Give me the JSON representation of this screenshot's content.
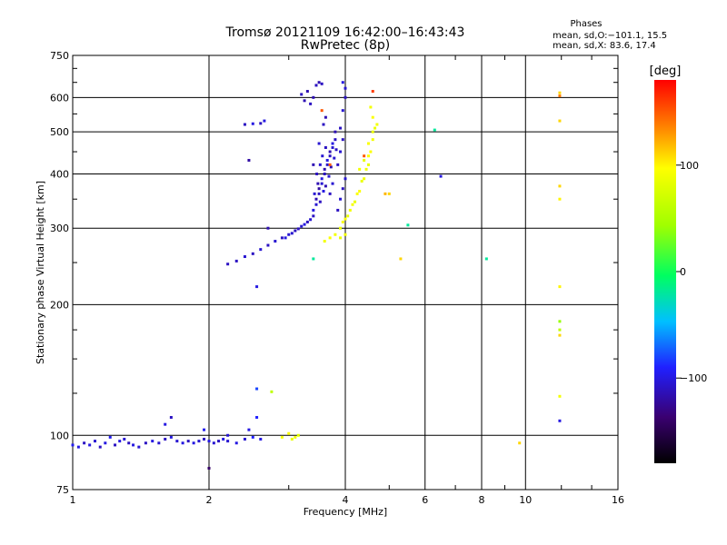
{
  "title_line1": "Tromsø 20121109 16:42:00–16:43:43",
  "title_line2": "RwPretec (8p)",
  "stats": {
    "heading": "Phases",
    "line_o": "mean, sd,O:−101.1, 15.5",
    "line_x": "mean, sd,X:  83.6, 17.4"
  },
  "colorbar": {
    "label": "[deg]",
    "range": [
      -180,
      180
    ],
    "ticks": [
      {
        "value": 100,
        "label": "100"
      },
      {
        "value": 0,
        "label": "0"
      },
      {
        "value": -100,
        "label": "−100"
      }
    ]
  },
  "chart_data": {
    "type": "scatter",
    "xlabel": "Frequency [MHz]",
    "ylabel": "Stationary phase Virtual Height [km]",
    "xscale": "log",
    "yscale": "log",
    "xlim": [
      1,
      16
    ],
    "ylim": [
      75,
      750
    ],
    "grid": true,
    "x_ticks": [
      {
        "value": 1,
        "label": "1"
      },
      {
        "value": 2,
        "label": "2"
      },
      {
        "value": 4,
        "label": "4"
      },
      {
        "value": 6,
        "label": "6"
      },
      {
        "value": 8,
        "label": "8"
      },
      {
        "value": 10,
        "label": "10"
      },
      {
        "value": 16,
        "label": "16"
      }
    ],
    "y_ticks": [
      {
        "value": 75,
        "label": "75"
      },
      {
        "value": 100,
        "label": "100"
      },
      {
        "value": 200,
        "label": "200"
      },
      {
        "value": 300,
        "label": "300"
      },
      {
        "value": 400,
        "label": "400"
      },
      {
        "value": 500,
        "label": "500"
      },
      {
        "value": 600,
        "label": "600"
      },
      {
        "value": 750,
        "label": "750"
      }
    ],
    "point_fields": [
      "frequency_MHz",
      "virtual_height_km",
      "phase_deg"
    ],
    "points": [
      [
        1.0,
        95,
        -95
      ],
      [
        1.03,
        94,
        -100
      ],
      [
        1.06,
        96,
        -110
      ],
      [
        1.09,
        95,
        -100
      ],
      [
        1.12,
        97,
        -105
      ],
      [
        1.15,
        94,
        -110
      ],
      [
        1.18,
        96,
        -100
      ],
      [
        1.21,
        99,
        -95
      ],
      [
        1.24,
        95,
        -110
      ],
      [
        1.27,
        97,
        -100
      ],
      [
        1.3,
        98,
        -105
      ],
      [
        1.33,
        96,
        -110
      ],
      [
        1.36,
        95,
        -100
      ],
      [
        1.4,
        94,
        -105
      ],
      [
        1.45,
        96,
        -110
      ],
      [
        1.5,
        97,
        -100
      ],
      [
        1.55,
        96,
        -105
      ],
      [
        1.6,
        98,
        -110
      ],
      [
        1.65,
        99,
        -100
      ],
      [
        1.7,
        97,
        -105
      ],
      [
        1.75,
        96,
        -100
      ],
      [
        1.8,
        97,
        -110
      ],
      [
        1.85,
        96,
        -100
      ],
      [
        1.9,
        97,
        -105
      ],
      [
        1.95,
        98,
        -110
      ],
      [
        2.0,
        97,
        -100
      ],
      [
        2.05,
        96,
        -105
      ],
      [
        2.1,
        97,
        -110
      ],
      [
        2.15,
        98,
        -100
      ],
      [
        2.2,
        97,
        -105
      ],
      [
        2.3,
        96,
        -100
      ],
      [
        2.4,
        98,
        -105
      ],
      [
        2.5,
        99,
        -90
      ],
      [
        2.6,
        98,
        -100
      ],
      [
        2.2,
        100,
        -105
      ],
      [
        1.6,
        106,
        -100
      ],
      [
        1.65,
        110,
        -110
      ],
      [
        1.95,
        103,
        -95
      ],
      [
        2.45,
        103,
        -100
      ],
      [
        2.55,
        110,
        -90
      ],
      [
        2.55,
        128,
        -80
      ],
      [
        2.75,
        126,
        60
      ],
      [
        2.9,
        99,
        90
      ],
      [
        3.0,
        101,
        95
      ],
      [
        3.05,
        98,
        85
      ],
      [
        3.1,
        99,
        90
      ],
      [
        3.15,
        100,
        80
      ],
      [
        2.0,
        84,
        -140
      ],
      [
        9.7,
        96,
        110
      ],
      [
        2.2,
        248,
        -110
      ],
      [
        2.3,
        252,
        -110
      ],
      [
        2.4,
        258,
        -105
      ],
      [
        2.5,
        262,
        -110
      ],
      [
        2.6,
        268,
        -105
      ],
      [
        2.7,
        274,
        -110
      ],
      [
        2.8,
        280,
        -105
      ],
      [
        2.9,
        285,
        -110
      ],
      [
        3.0,
        290,
        -105
      ],
      [
        3.1,
        296,
        -110
      ],
      [
        3.2,
        303,
        -105
      ],
      [
        3.3,
        310,
        -110
      ],
      [
        2.95,
        285,
        -100
      ],
      [
        3.05,
        292,
        -105
      ],
      [
        3.15,
        299,
        -110
      ],
      [
        3.25,
        306,
        -100
      ],
      [
        3.35,
        314,
        -105
      ],
      [
        2.7,
        300,
        -115
      ],
      [
        3.4,
        320,
        -110
      ],
      [
        3.45,
        340,
        -105
      ],
      [
        3.5,
        360,
        -110
      ],
      [
        3.55,
        380,
        -105
      ],
      [
        3.6,
        400,
        -110
      ],
      [
        3.65,
        420,
        -105
      ],
      [
        3.7,
        440,
        -110
      ],
      [
        3.75,
        460,
        -105
      ],
      [
        3.8,
        480,
        -110
      ],
      [
        3.4,
        330,
        -100
      ],
      [
        3.45,
        350,
        -115
      ],
      [
        3.5,
        370,
        -120
      ],
      [
        3.55,
        390,
        -100
      ],
      [
        3.6,
        410,
        -115
      ],
      [
        3.65,
        430,
        -100
      ],
      [
        3.7,
        450,
        -115
      ],
      [
        3.75,
        470,
        -100
      ],
      [
        3.8,
        500,
        -115
      ],
      [
        3.42,
        360,
        -105
      ],
      [
        3.48,
        380,
        -115
      ],
      [
        3.52,
        345,
        -110
      ],
      [
        3.58,
        365,
        -100
      ],
      [
        3.62,
        375,
        -115
      ],
      [
        3.68,
        395,
        -105
      ],
      [
        3.72,
        415,
        -115
      ],
      [
        3.78,
        435,
        -105
      ],
      [
        3.82,
        455,
        -110
      ],
      [
        3.52,
        420,
        -105
      ],
      [
        3.46,
        400,
        -110
      ],
      [
        3.56,
        440,
        -105
      ],
      [
        3.62,
        460,
        -110
      ],
      [
        3.4,
        420,
        -115
      ],
      [
        3.58,
        520,
        -110
      ],
      [
        3.62,
        540,
        -115
      ],
      [
        3.5,
        470,
        -105
      ],
      [
        3.7,
        360,
        -110
      ],
      [
        3.75,
        380,
        -105
      ],
      [
        3.85,
        420,
        -110
      ],
      [
        3.9,
        450,
        -105
      ],
      [
        3.95,
        480,
        -110
      ],
      [
        3.85,
        330,
        -110
      ],
      [
        3.9,
        350,
        -105
      ],
      [
        3.95,
        370,
        -110
      ],
      [
        4.0,
        390,
        -105
      ],
      [
        3.9,
        510,
        -110
      ],
      [
        3.95,
        560,
        -105
      ],
      [
        4.0,
        600,
        -110
      ],
      [
        4.0,
        630,
        -105
      ],
      [
        3.4,
        600,
        -115
      ],
      [
        3.45,
        640,
        -110
      ],
      [
        3.5,
        650,
        -115
      ],
      [
        3.55,
        645,
        -110
      ],
      [
        3.3,
        620,
        -115
      ],
      [
        3.2,
        610,
        -110
      ],
      [
        3.35,
        580,
        -110
      ],
      [
        3.25,
        590,
        -115
      ],
      [
        2.4,
        520,
        -110
      ],
      [
        2.5,
        522,
        -100
      ],
      [
        2.6,
        523,
        -110
      ],
      [
        2.65,
        530,
        -100
      ],
      [
        2.45,
        430,
        -120
      ],
      [
        3.95,
        650,
        -100
      ],
      [
        3.55,
        560,
        150
      ],
      [
        3.7,
        420,
        150
      ],
      [
        2.55,
        220,
        -100
      ],
      [
        3.4,
        255,
        -20
      ],
      [
        3.6,
        280,
        90
      ],
      [
        3.7,
        285,
        95
      ],
      [
        3.8,
        290,
        90
      ],
      [
        3.9,
        300,
        85
      ],
      [
        4.0,
        315,
        95
      ],
      [
        4.1,
        330,
        90
      ],
      [
        4.2,
        345,
        85
      ],
      [
        4.3,
        365,
        95
      ],
      [
        4.4,
        390,
        90
      ],
      [
        4.5,
        420,
        85
      ],
      [
        4.55,
        450,
        95
      ],
      [
        4.6,
        480,
        90
      ],
      [
        4.65,
        510,
        85
      ],
      [
        4.6,
        540,
        95
      ],
      [
        4.55,
        570,
        90
      ],
      [
        3.9,
        285,
        85
      ],
      [
        4.0,
        290,
        90
      ],
      [
        3.95,
        310,
        95
      ],
      [
        4.05,
        320,
        85
      ],
      [
        4.15,
        340,
        90
      ],
      [
        4.25,
        360,
        95
      ],
      [
        4.35,
        385,
        85
      ],
      [
        4.45,
        410,
        90
      ],
      [
        4.5,
        440,
        95
      ],
      [
        4.4,
        430,
        85
      ],
      [
        4.3,
        410,
        90
      ],
      [
        4.5,
        470,
        95
      ],
      [
        4.6,
        500,
        85
      ],
      [
        4.7,
        520,
        90
      ],
      [
        4.6,
        620,
        160
      ],
      [
        4.4,
        440,
        150
      ],
      [
        4.9,
        360,
        120
      ],
      [
        5.0,
        360,
        110
      ],
      [
        5.5,
        305,
        -20
      ],
      [
        5.3,
        255,
        110
      ],
      [
        6.3,
        505,
        -20
      ],
      [
        6.5,
        395,
        -100
      ],
      [
        8.2,
        255,
        -20
      ],
      [
        11.9,
        615,
        110
      ],
      [
        11.9,
        605,
        140
      ],
      [
        11.9,
        530,
        110
      ],
      [
        11.9,
        375,
        110
      ],
      [
        11.9,
        350,
        100
      ],
      [
        11.9,
        220,
        100
      ],
      [
        11.9,
        183,
        40
      ],
      [
        11.9,
        175,
        60
      ],
      [
        11.9,
        170,
        110
      ],
      [
        11.9,
        123,
        90
      ],
      [
        11.9,
        108,
        -100
      ]
    ]
  }
}
